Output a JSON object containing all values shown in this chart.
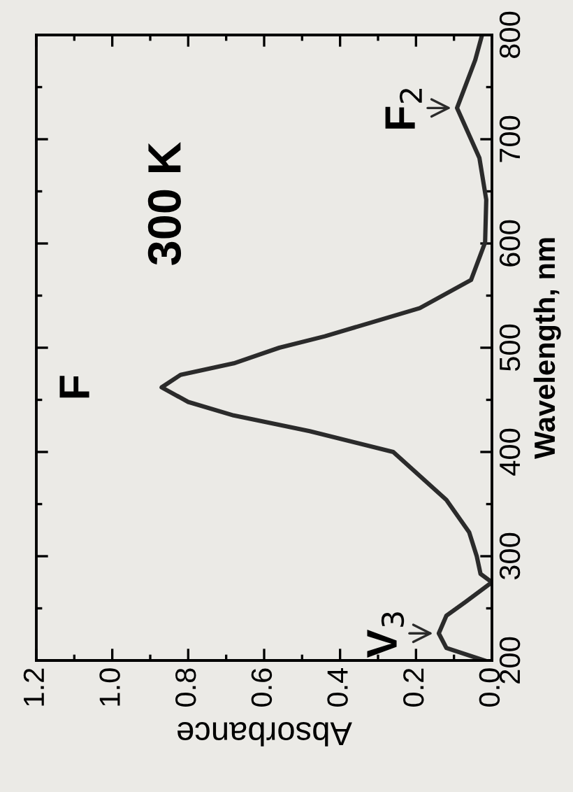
{
  "chart_data": {
    "type": "line",
    "xlabel": "Absorbance",
    "ylabel": "Wavelength, nm",
    "color": "#2b2b2b",
    "x": [
      0.02,
      0.12,
      0.14,
      0.12,
      0.07,
      0.0,
      0.03,
      0.04,
      0.06,
      0.12,
      0.26,
      0.48,
      0.68,
      0.8,
      0.87,
      0.82,
      0.68,
      0.56,
      0.44,
      0.19,
      0.055,
      0.018,
      0.015,
      0.033,
      0.092,
      0.044,
      0.026
    ],
    "values": [
      200,
      212,
      226,
      243,
      256,
      275,
      283,
      300,
      323,
      354,
      400,
      420,
      435,
      448,
      462,
      474,
      485,
      500,
      511,
      538,
      565,
      601,
      642,
      682,
      730,
      776,
      800
    ],
    "xlim": [
      1.2,
      0.0
    ],
    "xticks": [
      {
        "value": 0.0,
        "label": "0.0"
      },
      0.2,
      0.4,
      0.6,
      0.8,
      {
        "value": 1.0,
        "label": "1.0"
      },
      1.2
    ],
    "ylim": [
      200,
      800
    ],
    "yticks": [
      200,
      300,
      400,
      500,
      600,
      700,
      800
    ],
    "grid": false,
    "annotations": [
      "300 K",
      {
        "text": "F",
        "x": 0.87,
        "y": 462
      },
      {
        "text": "V$_{3}$",
        "x": 0.14,
        "y": 226
      },
      {
        "text": "F$_{2}$",
        "x": 0.092,
        "y": 730
      }
    ]
  }
}
